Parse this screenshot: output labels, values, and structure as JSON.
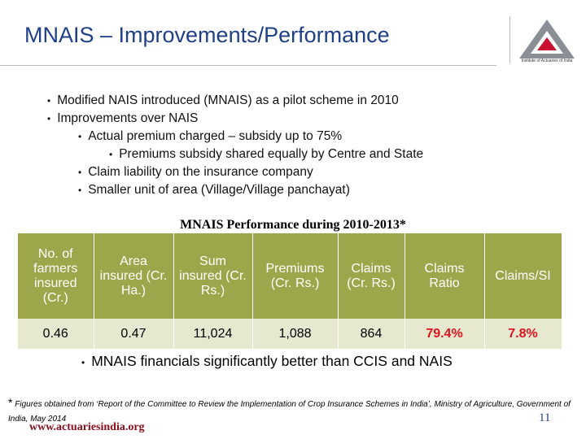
{
  "header": {
    "title": "MNAIS – Improvements/Performance",
    "logo_text": "Institute of Actuaries of India"
  },
  "bullets": [
    {
      "text": "Modified NAIS introduced (MNAIS) as a pilot scheme in 2010",
      "children": []
    },
    {
      "text": "Improvements over NAIS",
      "children": [
        {
          "text": "Actual premium charged – subsidy up to 75%",
          "children": [
            {
              "text": "Premiums subsidy shared equally by Centre and State",
              "children": []
            }
          ]
        },
        {
          "text": "Claim liability on the insurance company",
          "children": []
        },
        {
          "text": "Smaller unit of area (Village/Village panchayat)",
          "children": []
        }
      ]
    }
  ],
  "table": {
    "title": "MNAIS Performance during 2010-2013*",
    "columns": [
      "No. of farmers insured (Cr.)",
      "Area insured (Cr. Ha.)",
      "Sum insured (Cr. Rs.)",
      "Premiums (Cr. Rs.)",
      "Claims (Cr. Rs.)",
      "Claims Ratio",
      "Claims/SI"
    ],
    "rows": [
      [
        "0.46",
        "0.47",
        "11,024",
        "1,088",
        "864",
        "79.4%",
        "7.8%"
      ]
    ]
  },
  "summary_bullet": "MNAIS financials significantly better than CCIS and NAIS",
  "footnote": {
    "marker": "*",
    "text": "Figures obtained from ‘Report of the Committee to Review the Implementation of Crop Insurance Schemes in India’, Ministry of Agriculture, Government of India, May 2014"
  },
  "footer": {
    "url": "www.actuariesindia.org",
    "page": "11"
  }
}
